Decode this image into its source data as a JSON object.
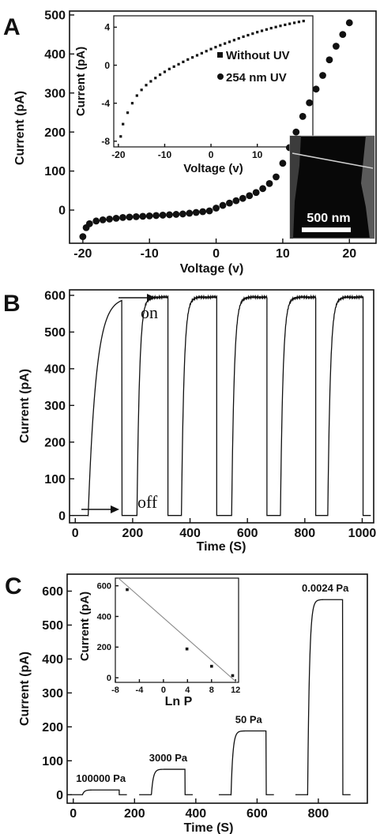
{
  "chart_data": [
    {
      "type": "scatter",
      "panel_label": "A",
      "xlabel": "Voltage (v)",
      "ylabel": "Current (pA)",
      "xlim": [
        -22,
        24
      ],
      "ylim": [
        -85,
        510
      ],
      "xticks": [
        "-20",
        "-10",
        "0",
        "10",
        "20"
      ],
      "xtick_values": [
        -20,
        -10,
        0,
        10,
        20
      ],
      "yticks": [
        "0",
        "100",
        "200",
        "300",
        "400",
        "500"
      ],
      "ytick_values": [
        0,
        100,
        200,
        300,
        400,
        500
      ],
      "series": [
        {
          "name": "254 nm UV",
          "marker": "circle",
          "x": [
            -20,
            -19.5,
            -19,
            -18,
            -17,
            -16,
            -15,
            -14,
            -13,
            -12,
            -11,
            -10,
            -9,
            -8,
            -7,
            -6,
            -5,
            -4,
            -3,
            -2,
            -1,
            0,
            1,
            2,
            3,
            4,
            5,
            6,
            7,
            8,
            9,
            10,
            11,
            12,
            13,
            14,
            15,
            16,
            17,
            18,
            19,
            20
          ],
          "y": [
            -68,
            -45,
            -35,
            -28,
            -25,
            -23,
            -21,
            -19,
            -18,
            -17,
            -16,
            -15,
            -14,
            -13,
            -12,
            -11,
            -10,
            -8,
            -6,
            -4,
            -2,
            5,
            12,
            18,
            24,
            30,
            37,
            45,
            55,
            68,
            85,
            120,
            160,
            200,
            240,
            275,
            310,
            345,
            385,
            420,
            450,
            480
          ]
        }
      ],
      "inset": {
        "type": "scatter",
        "xlabel": "Voltage (v)",
        "ylabel": "Current (pA)",
        "xlim": [
          -21,
          22
        ],
        "ylim": [
          -8.6,
          5.2
        ],
        "xticks": [
          "-20",
          "-10",
          "0",
          "10",
          "20"
        ],
        "xtick_values": [
          -20,
          -10,
          0,
          10,
          20
        ],
        "yticks": [
          "4",
          "0",
          "-4",
          "-8"
        ],
        "ytick_values": [
          4,
          0,
          -4,
          -8
        ],
        "legend": [
          "Without UV",
          "254 nm UV"
        ],
        "x": [
          -19.5,
          -19,
          -18,
          -17,
          -16,
          -15,
          -14,
          -13,
          -12,
          -11,
          -10,
          -9,
          -8,
          -7,
          -6,
          -5,
          -4,
          -3,
          -2,
          -1,
          0,
          1,
          2,
          3,
          4,
          5,
          6,
          7,
          8,
          9,
          10,
          11,
          12,
          13,
          14,
          15,
          16,
          17,
          18,
          19,
          20
        ],
        "y": [
          -7.5,
          -6.2,
          -5.0,
          -4.0,
          -3.2,
          -2.6,
          -2.1,
          -1.7,
          -1.35,
          -1.0,
          -0.7,
          -0.4,
          -0.15,
          0.1,
          0.35,
          0.6,
          0.82,
          1.04,
          1.26,
          1.48,
          1.7,
          1.9,
          2.1,
          2.28,
          2.46,
          2.64,
          2.82,
          3.0,
          3.16,
          3.32,
          3.48,
          3.62,
          3.76,
          3.9,
          4.02,
          4.14,
          4.25,
          4.36,
          4.46,
          4.56,
          4.65
        ]
      },
      "image_inset": {
        "scale_bar": "500 nm"
      }
    },
    {
      "type": "line",
      "panel_label": "B",
      "xlabel": "Time (S)",
      "ylabel": "Current (pA)",
      "xlim": [
        -20,
        1040
      ],
      "ylim": [
        -20,
        615
      ],
      "xticks": [
        "0",
        "200",
        "400",
        "600",
        "800",
        "1000"
      ],
      "xtick_values": [
        0,
        200,
        400,
        600,
        800,
        1000
      ],
      "yticks": [
        "0",
        "100",
        "200",
        "300",
        "400",
        "500",
        "600"
      ],
      "ytick_values": [
        0,
        100,
        200,
        300,
        400,
        500,
        600
      ],
      "annotations": [
        "on",
        "off"
      ],
      "on_intervals": [
        [
          45,
          163
        ],
        [
          215,
          323
        ],
        [
          370,
          493
        ],
        [
          545,
          668
        ],
        [
          715,
          838
        ],
        [
          880,
          1003
        ]
      ],
      "on_level": 595,
      "off_level": 0
    },
    {
      "type": "line",
      "panel_label": "C",
      "xlabel": "Time (S)",
      "ylabel": "Current (pA)",
      "xlim": [
        -20,
        960
      ],
      "ylim": [
        -25,
        650
      ],
      "xticks": [
        "0",
        "200",
        "400",
        "600",
        "800"
      ],
      "xtick_values": [
        0,
        200,
        400,
        600,
        800
      ],
      "yticks": [
        "0",
        "100",
        "200",
        "300",
        "400",
        "500",
        "600"
      ],
      "ytick_values": [
        0,
        100,
        200,
        300,
        400,
        500,
        600
      ],
      "segments": [
        {
          "label": "100000 Pa",
          "start": 30,
          "end": 150,
          "level": 14
        },
        {
          "label": "3000 Pa",
          "start": 255,
          "end": 365,
          "level": 75
        },
        {
          "label": "50 Pa",
          "start": 515,
          "end": 630,
          "level": 188
        },
        {
          "label": "0.0024 Pa",
          "start": 765,
          "end": 880,
          "level": 575
        }
      ],
      "inset": {
        "type": "scatter",
        "xlabel": "Ln P",
        "ylabel": "Current (pA)",
        "xlim": [
          -8,
          12.5
        ],
        "ylim": [
          -30,
          650
        ],
        "xticks": [
          "-8",
          "-4",
          "0",
          "4",
          "8",
          "12"
        ],
        "xtick_values": [
          -8,
          -4,
          0,
          4,
          8,
          12
        ],
        "yticks": [
          "0",
          "200",
          "400",
          "600"
        ],
        "ytick_values": [
          0,
          200,
          400,
          600
        ],
        "x": [
          -6.03,
          3.91,
          8.01,
          11.51
        ],
        "y": [
          575,
          188,
          75,
          14
        ],
        "fit_line": {
          "x": [
            -7.5,
            12.2
          ],
          "y": [
            650,
            -30
          ]
        }
      }
    }
  ]
}
